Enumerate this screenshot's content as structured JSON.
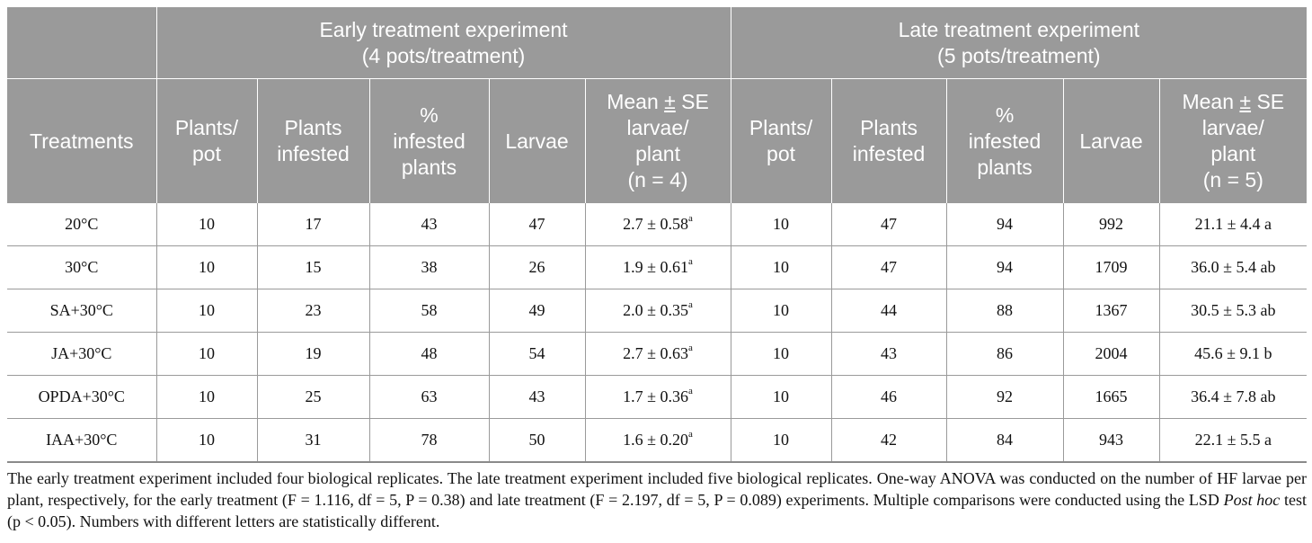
{
  "header": {
    "early_title": "Early treatment experiment",
    "early_sub": "(4 pots/treatment)",
    "late_title": "Late treatment experiment",
    "late_sub": "(5 pots/treatment)",
    "treatments": "Treatments",
    "early_cols": {
      "plants_pot_1": "Plants/",
      "plants_pot_2": "pot",
      "infested_1": "Plants",
      "infested_2": "infested",
      "pct_1": "%",
      "pct_2": "infested",
      "pct_3": "plants",
      "larvae": "Larvae",
      "mean_1": "Mean",
      "mean_pm": "±",
      "mean_se": "SE",
      "mean_2": "larvae/",
      "mean_3": "plant",
      "mean_4": "(n = 4)"
    },
    "late_cols": {
      "plants_pot_1": "Plants/",
      "plants_pot_2": "pot",
      "infested_1": "Plants",
      "infested_2": "infested",
      "pct_1": "%",
      "pct_2": "infested",
      "pct_3": "plants",
      "larvae": "Larvae",
      "mean_1": "Mean",
      "mean_pm": "±",
      "mean_se": "SE",
      "mean_2": "larvae/",
      "mean_3": "plant",
      "mean_4": "(n = 5)"
    }
  },
  "rows": [
    {
      "treatment": "20°C",
      "e_pp": "10",
      "e_inf": "17",
      "e_pct": "43",
      "e_larvae": "47",
      "e_mean": "2.7 ± 0.58",
      "e_sup": "a",
      "l_pp": "10",
      "l_inf": "47",
      "l_pct": "94",
      "l_larvae": "992",
      "l_mean": "21.1 ± 4.4 a"
    },
    {
      "treatment": "30°C",
      "e_pp": "10",
      "e_inf": "15",
      "e_pct": "38",
      "e_larvae": "26",
      "e_mean": "1.9 ± 0.61",
      "e_sup": "a",
      "l_pp": "10",
      "l_inf": "47",
      "l_pct": "94",
      "l_larvae": "1709",
      "l_mean": "36.0 ± 5.4 ab"
    },
    {
      "treatment": "SA+30°C",
      "e_pp": "10",
      "e_inf": "23",
      "e_pct": "58",
      "e_larvae": "49",
      "e_mean": "2.0 ± 0.35",
      "e_sup": "a",
      "l_pp": "10",
      "l_inf": "44",
      "l_pct": "88",
      "l_larvae": "1367",
      "l_mean": "30.5 ± 5.3 ab"
    },
    {
      "treatment": "JA+30°C",
      "e_pp": "10",
      "e_inf": "19",
      "e_pct": "48",
      "e_larvae": "54",
      "e_mean": "2.7 ± 0.63",
      "e_sup": "a",
      "l_pp": "10",
      "l_inf": "43",
      "l_pct": "86",
      "l_larvae": "2004",
      "l_mean": "45.6 ± 9.1 b"
    },
    {
      "treatment": "OPDA+30°C",
      "e_pp": "10",
      "e_inf": "25",
      "e_pct": "63",
      "e_larvae": "43",
      "e_mean": "1.7 ± 0.36",
      "e_sup": "a",
      "l_pp": "10",
      "l_inf": "46",
      "l_pct": "92",
      "l_larvae": "1665",
      "l_mean": "36.4 ± 7.8 ab"
    },
    {
      "treatment": "IAA+30°C",
      "e_pp": "10",
      "e_inf": "31",
      "e_pct": "78",
      "e_larvae": "50",
      "e_mean": "1.6 ± 0.20",
      "e_sup": "a",
      "l_pp": "10",
      "l_inf": "42",
      "l_pct": "84",
      "l_larvae": "943",
      "l_mean": "22.1 ± 5.5 a"
    }
  ],
  "footnote": {
    "part1": "The early treatment experiment included four biological replicates. The late treatment experiment included five biological replicates. One-way ANOVA was conducted on the number of HF larvae per plant, respectively, for the early treatment (F = 1.116, df = 5, P = 0.38) and late treatment (F = 2.197, df = 5, P = 0.089) experiments. Multiple comparisons were conducted using the LSD ",
    "italic": "Post hoc",
    "part2": " test (p < 0.05). Numbers with different letters are statistically different."
  }
}
